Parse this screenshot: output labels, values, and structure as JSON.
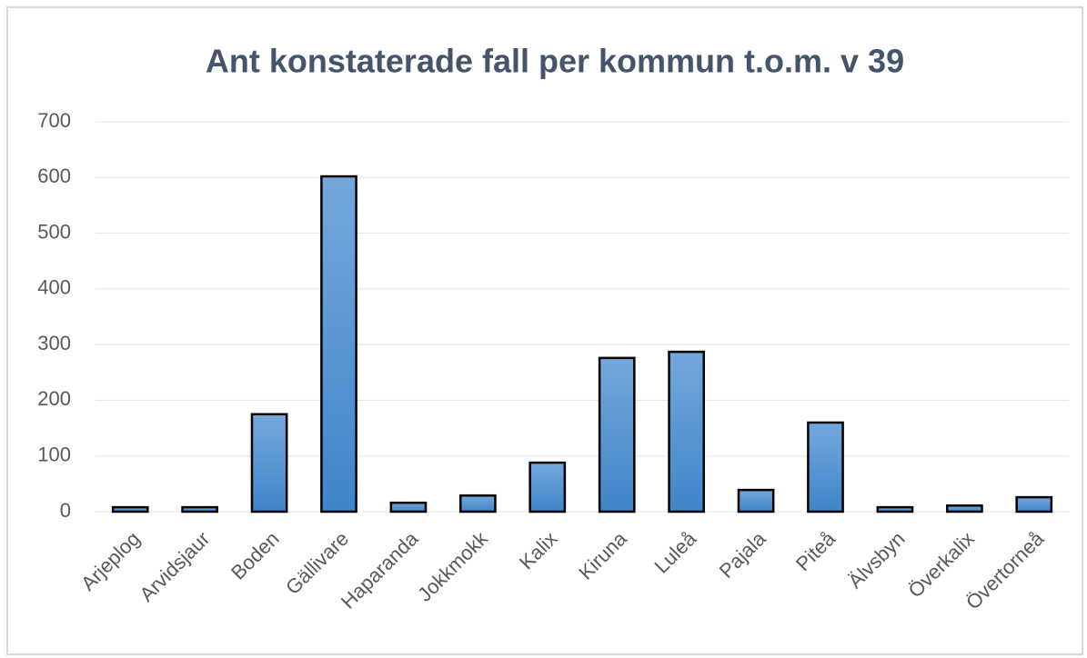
{
  "chart_data": {
    "type": "bar",
    "title": "Ant konstaterade fall per kommun t.o.m. v 39",
    "categories": [
      "Arjeplog",
      "Arvidsjaur",
      "Boden",
      "Gällivare",
      "Haparanda",
      "Jokkmokk",
      "Kalix",
      "Kiruna",
      "Luleå",
      "Pajala",
      "Piteå",
      "Älvsbyn",
      "Överkalix",
      "Övertorneå"
    ],
    "values": [
      8,
      8,
      175,
      602,
      16,
      29,
      88,
      276,
      287,
      39,
      160,
      8,
      11,
      26
    ],
    "color": "#5b9bd5",
    "ylim": [
      0,
      700
    ],
    "yticks": [
      0,
      100,
      200,
      300,
      400,
      500,
      600,
      700
    ],
    "grid": true
  }
}
